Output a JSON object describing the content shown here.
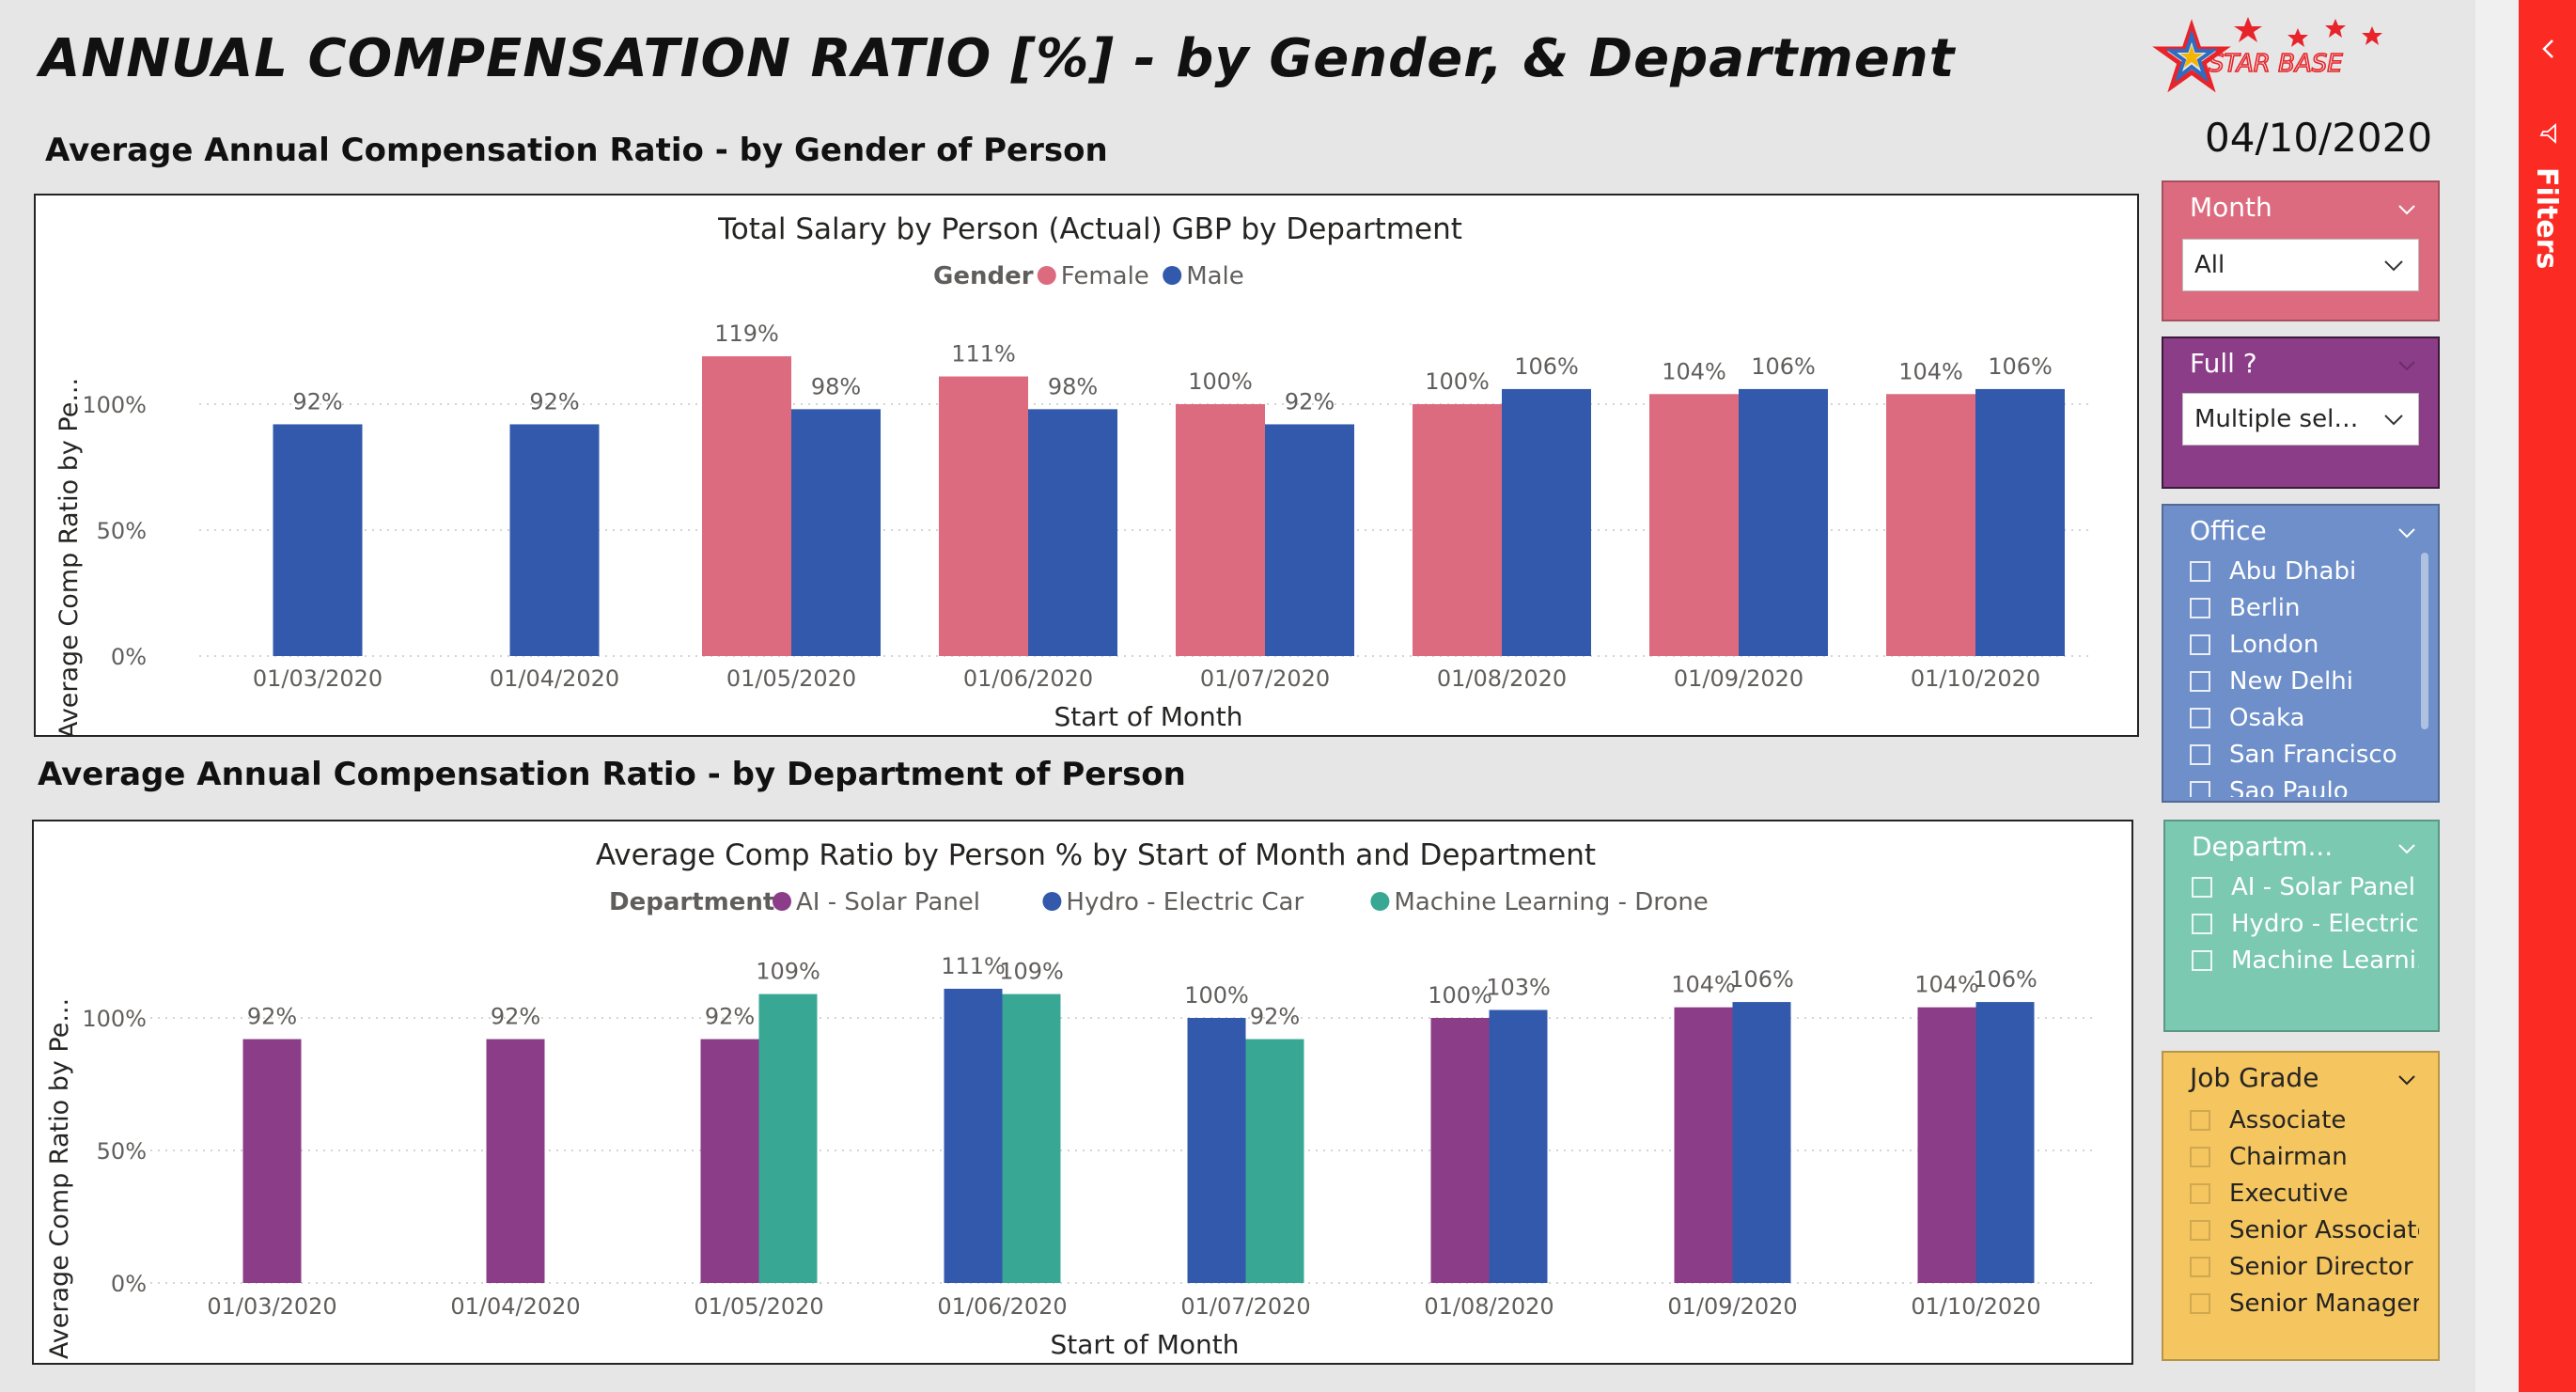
{
  "page_title": "ANNUAL COMPENSATION RATIO [%] - by Gender, & Department",
  "report_date": "04/10/2020",
  "logo_text": "STAR BASE",
  "sections": {
    "gender_title": "Average Annual Compensation Ratio - by Gender of Person",
    "department_title": "Average Annual Compensation Ratio - by Department of Person"
  },
  "colors": {
    "female": "#dd6b7f",
    "male": "#3259ab",
    "ai_solar": "#8b3d88",
    "hydro": "#3259ab",
    "ml_drone": "#38a894",
    "month_slicer": "#dd6b7f",
    "full_slicer": "#8b3d88",
    "office_slicer": "#6e8fc9",
    "department_slicer": "#7bc9b0",
    "jobgrade_slicer": "#f5c65f",
    "filter_rail": "#fb2b24"
  },
  "chart_data": [
    {
      "type": "bar",
      "title": "Total Salary by Person (Actual) GBP by Department",
      "legend_title": "Gender",
      "legend_position": "top-center",
      "xlabel": "Start of Month",
      "ylabel": "Average Comp Ratio by Pe...",
      "ylim": [
        0,
        130
      ],
      "yticks": [
        0,
        50,
        100
      ],
      "ytick_labels": [
        "0%",
        "50%",
        "100%"
      ],
      "grid": true,
      "categories": [
        "01/03/2020",
        "01/04/2020",
        "01/05/2020",
        "01/06/2020",
        "01/07/2020",
        "01/08/2020",
        "01/09/2020",
        "01/10/2020"
      ],
      "series": [
        {
          "name": "Female",
          "color": "#dd6b7f",
          "values": [
            null,
            null,
            119,
            111,
            100,
            100,
            104,
            104
          ],
          "labels": [
            "",
            "",
            "119%",
            "111%",
            "100%",
            "100%",
            "104%",
            "104%"
          ]
        },
        {
          "name": "Male",
          "color": "#3259ab",
          "values": [
            92,
            92,
            98,
            98,
            92,
            106,
            106,
            106
          ],
          "labels": [
            "92%",
            "92%",
            "98%",
            "98%",
            "92%",
            "106%",
            "106%",
            "106%"
          ]
        }
      ]
    },
    {
      "type": "bar",
      "title": "Average Comp Ratio by Person % by Start of Month and Department",
      "legend_title": "Department",
      "legend_position": "top-center",
      "xlabel": "Start of Month",
      "ylabel": "Average Comp Ratio by Pe...",
      "ylim": [
        0,
        130
      ],
      "yticks": [
        0,
        50,
        100
      ],
      "ytick_labels": [
        "0%",
        "50%",
        "100%"
      ],
      "grid": true,
      "categories": [
        "01/03/2020",
        "01/04/2020",
        "01/05/2020",
        "01/06/2020",
        "01/07/2020",
        "01/08/2020",
        "01/09/2020",
        "01/10/2020"
      ],
      "series": [
        {
          "name": "AI - Solar Panel",
          "color": "#8b3d88",
          "values": [
            92,
            92,
            92,
            null,
            null,
            100,
            104,
            104
          ],
          "labels": [
            "92%",
            "92%",
            "92%",
            "",
            "",
            "100%",
            "104%",
            "104%"
          ]
        },
        {
          "name": "Hydro - Electric Car",
          "color": "#3259ab",
          "values": [
            null,
            null,
            null,
            111,
            100,
            103,
            106,
            106
          ],
          "labels": [
            "",
            "",
            "",
            "111%",
            "100%",
            "103%",
            "106%",
            "106%"
          ]
        },
        {
          "name": "Machine Learning - Drone",
          "color": "#38a894",
          "values": [
            null,
            null,
            109,
            109,
            92,
            null,
            null,
            null
          ],
          "labels": [
            "",
            "",
            "109%",
            "109%",
            "92%",
            "",
            "",
            ""
          ]
        }
      ]
    }
  ],
  "slicers": {
    "month": {
      "title": "Month",
      "selected": "All"
    },
    "full": {
      "title": "Full ?",
      "selected": "Multiple select..."
    },
    "office": {
      "title": "Office",
      "items": [
        "Abu Dhabi",
        "Berlin",
        "London",
        "New Delhi",
        "Osaka",
        "San Francisco",
        "Sao Paulo"
      ]
    },
    "department": {
      "title": "Departm...",
      "items": [
        "AI - Solar Panel",
        "Hydro - Electric...",
        "Machine Learni..."
      ]
    },
    "job_grade": {
      "title": "Job Grade",
      "items": [
        "Associate",
        "Chairman",
        "Executive",
        "Senior Associate",
        "Senior Director",
        "Senior Manager"
      ]
    }
  },
  "filters_pane": {
    "label": "Filters"
  }
}
